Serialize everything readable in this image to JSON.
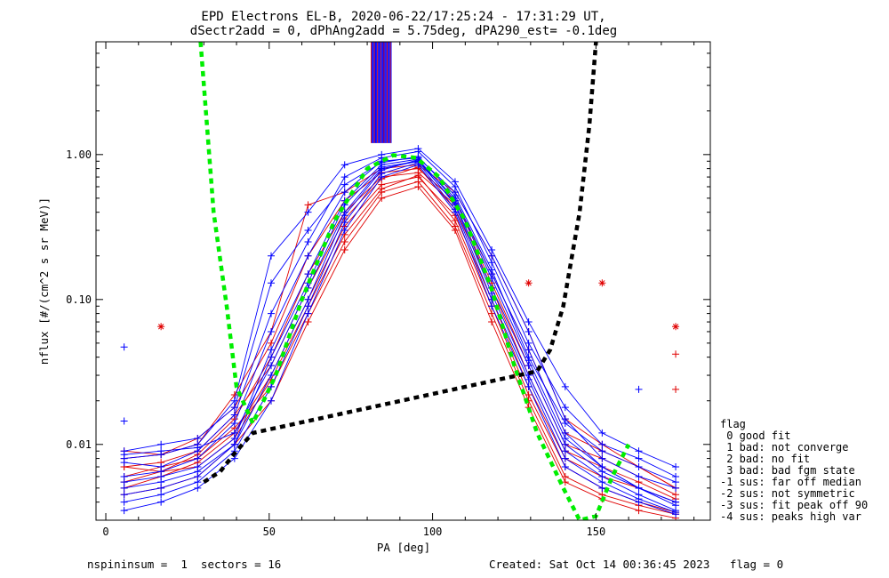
{
  "title_line1": "EPD Electrons EL-B, 2020-06-22/17:25:24 - 17:31:29 UT,",
  "title_line2": "dSectr2add = 0, dPhAng2add = 5.75deg, dPA290_est=  -0.1deg",
  "footer": {
    "left": "nspininsum =  1  sectors = 16",
    "right": "Created: Sat Oct 14 00:36:45 2023   flag = 0"
  },
  "legend": {
    "title": "flag",
    "items": [
      " 0 good fit",
      " 1 bad: not converge",
      " 2 bad: no fit",
      " 3 bad: bad fgm state",
      "-1 sus: far off median",
      "-2 sus: not symmetric",
      "-3 sus: fit peak off 90",
      "-4 sus: peaks high var"
    ]
  },
  "colors": {
    "blue_series": "#0000ff",
    "red_series": "#e00000",
    "green_fit": "#00ee00",
    "black_fit": "#000000",
    "axes": "#000000",
    "background": "#ffffff"
  },
  "chart_data": {
    "type": "line",
    "xlabel": "PA [deg]",
    "ylabel": "nflux [#/(cm^2 s sr MeV)]",
    "xlim": [
      -3,
      185
    ],
    "ylim": [
      0.003,
      6.0
    ],
    "yscale": "log",
    "grid": false,
    "legend_position": "right",
    "x_ticks": [
      0,
      50,
      100,
      150
    ],
    "x_tick_labels": [
      "0",
      "50",
      "100",
      "150"
    ],
    "y_ticks": [
      0.01,
      0.1,
      1.0
    ],
    "y_tick_labels": [
      "0.01",
      "0.10",
      "1.00"
    ],
    "x_pa": [
      5.6,
      16.9,
      28.1,
      39.4,
      50.6,
      61.9,
      73.1,
      84.4,
      95.6,
      106.9,
      118.1,
      129.4,
      140.6,
      151.9,
      163.1,
      174.4
    ],
    "series": [
      {
        "color": "blue",
        "values": [
          0.0085,
          0.009,
          0.0095,
          0.012,
          0.035,
          0.12,
          0.4,
          0.8,
          0.9,
          0.5,
          0.15,
          0.045,
          0.012,
          0.007,
          0.005,
          0.004
        ]
      },
      {
        "color": "blue",
        "values": [
          0.006,
          0.0065,
          0.008,
          0.014,
          0.06,
          0.2,
          0.55,
          0.9,
          0.95,
          0.55,
          0.2,
          0.06,
          0.015,
          0.008,
          0.006,
          0.005
        ]
      },
      {
        "color": "blue",
        "values": [
          0.0045,
          0.005,
          0.006,
          0.01,
          0.03,
          0.1,
          0.38,
          0.78,
          0.92,
          0.45,
          0.11,
          0.03,
          0.009,
          0.006,
          0.0045,
          0.0035
        ]
      },
      {
        "color": "blue",
        "values": [
          0.0075,
          0.007,
          0.009,
          0.016,
          0.08,
          0.25,
          0.7,
          0.95,
          1.05,
          0.6,
          0.18,
          0.05,
          0.018,
          0.01,
          0.008,
          0.006
        ]
      },
      {
        "color": "blue",
        "values": [
          0.0035,
          0.004,
          0.005,
          0.008,
          0.02,
          0.08,
          0.3,
          0.7,
          0.85,
          0.4,
          0.09,
          0.025,
          0.007,
          0.005,
          0.004,
          0.0033
        ]
      },
      {
        "color": "blue",
        "values": [
          0.009,
          0.01,
          0.011,
          0.018,
          0.13,
          0.3,
          0.62,
          0.88,
          0.97,
          0.52,
          0.16,
          0.04,
          0.014,
          0.009,
          0.007,
          0.0055
        ]
      },
      {
        "color": "blue",
        "values": [
          0.0055,
          0.006,
          0.007,
          0.011,
          0.045,
          0.15,
          0.48,
          0.85,
          0.93,
          0.48,
          0.14,
          0.038,
          0.011,
          0.007,
          0.005,
          0.004
        ]
      },
      {
        "color": "blue",
        "values": [
          0.004,
          0.0045,
          0.0055,
          0.009,
          0.025,
          0.09,
          0.34,
          0.74,
          0.88,
          0.42,
          0.1,
          0.028,
          0.008,
          0.0055,
          0.0042,
          0.0034
        ]
      },
      {
        "color": "blue",
        "values": [
          0.008,
          0.0085,
          0.01,
          0.02,
          0.2,
          0.4,
          0.85,
          1.0,
          1.1,
          0.65,
          0.22,
          0.07,
          0.025,
          0.012,
          0.009,
          0.007
        ]
      },
      {
        "color": "blue",
        "values": [
          0.005,
          0.0055,
          0.0065,
          0.01,
          0.04,
          0.13,
          0.45,
          0.82,
          0.9,
          0.46,
          0.12,
          0.035,
          0.01,
          0.0065,
          0.005,
          0.0038
        ]
      },
      {
        "color": "red",
        "values": [
          0.007,
          0.0065,
          0.0085,
          0.015,
          0.04,
          0.15,
          0.4,
          0.7,
          0.75,
          0.45,
          0.13,
          0.035,
          0.01,
          0.008,
          0.006,
          0.0045
        ]
      },
      {
        "color": "red",
        "values": [
          0.005,
          0.006,
          0.0075,
          0.012,
          0.03,
          0.1,
          0.32,
          0.62,
          0.7,
          0.38,
          0.1,
          0.025,
          0.008,
          0.006,
          0.005,
          0.004
        ]
      },
      {
        "color": "red",
        "values": [
          0.008,
          0.0085,
          0.01,
          0.022,
          0.06,
          0.45,
          0.55,
          0.8,
          0.85,
          0.55,
          0.2,
          0.06,
          0.015,
          0.01,
          0.007,
          0.005
        ]
      },
      {
        "color": "red",
        "values": [
          0.006,
          0.007,
          0.008,
          0.013,
          0.025,
          0.08,
          0.25,
          0.55,
          0.65,
          0.32,
          0.08,
          0.02,
          0.006,
          0.0045,
          0.0038,
          0.0033
        ]
      },
      {
        "color": "red",
        "values": [
          0.009,
          0.0085,
          0.011,
          0.018,
          0.05,
          0.2,
          0.48,
          0.75,
          0.8,
          0.48,
          0.15,
          0.045,
          0.012,
          0.009,
          0.007,
          0.005
        ]
      },
      {
        "color": "red",
        "values": [
          0.0045,
          0.005,
          0.006,
          0.01,
          0.02,
          0.07,
          0.22,
          0.5,
          0.6,
          0.3,
          0.07,
          0.018,
          0.0055,
          0.0042,
          0.0035,
          0.0031
        ]
      },
      {
        "color": "red",
        "values": [
          0.007,
          0.0075,
          0.009,
          0.016,
          0.035,
          0.12,
          0.36,
          0.68,
          0.82,
          0.42,
          0.12,
          0.03,
          0.009,
          0.007,
          0.0055,
          0.0042
        ]
      },
      {
        "color": "red",
        "values": [
          0.0055,
          0.0065,
          0.007,
          0.011,
          0.028,
          0.09,
          0.28,
          0.58,
          0.72,
          0.35,
          0.09,
          0.022,
          0.007,
          0.005,
          0.004,
          0.0034
        ]
      }
    ],
    "fits": [
      {
        "name": "green",
        "x": [
          29,
          33,
          37,
          40,
          45,
          52,
          60,
          70,
          80,
          88,
          95,
          102,
          110,
          118,
          125,
          132,
          140,
          145,
          150,
          155,
          160
        ],
        "y": [
          6.0,
          0.4,
          0.09,
          0.025,
          0.014,
          0.03,
          0.1,
          0.35,
          0.8,
          0.99,
          0.95,
          0.7,
          0.35,
          0.12,
          0.035,
          0.012,
          0.005,
          0.003,
          0.0032,
          0.006,
          0.01
        ]
      },
      {
        "name": "black",
        "x": [
          30,
          35,
          40,
          45,
          132,
          136,
          140,
          145,
          148,
          150
        ],
        "y": [
          0.0055,
          0.0065,
          0.009,
          0.012,
          0.032,
          0.045,
          0.09,
          0.4,
          1.6,
          6.0
        ]
      }
    ],
    "isolated_points": [
      {
        "color": "blue",
        "x": 5.6,
        "y": 0.047
      },
      {
        "color": "blue",
        "x": 5.6,
        "y": 0.0145
      },
      {
        "color": "red",
        "x": 174.4,
        "y": 0.065
      },
      {
        "color": "red",
        "x": 174.4,
        "y": 0.042
      },
      {
        "color": "red",
        "x": 174.4,
        "y": 0.024
      },
      {
        "color": "blue",
        "x": 163.1,
        "y": 0.024
      },
      {
        "color": "red",
        "x": 16.9,
        "y": 0.065
      },
      {
        "color": "red",
        "x": 151.9,
        "y": 0.13
      },
      {
        "color": "red",
        "x": 129.4,
        "y": 0.13
      }
    ]
  }
}
